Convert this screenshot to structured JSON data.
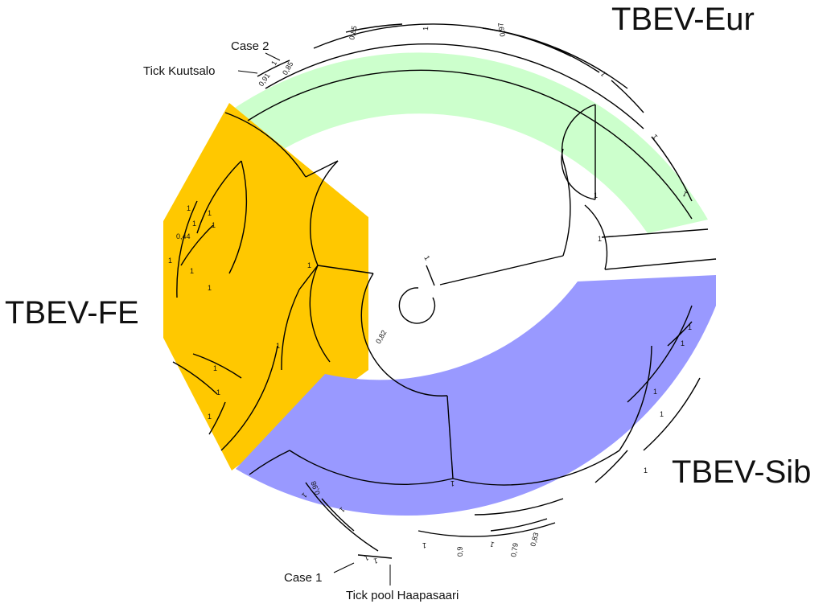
{
  "clades": [
    {
      "name": "TBEV-Eur",
      "color": "#ccffcc"
    },
    {
      "name": "TBEV-FE",
      "color": "#ffc800"
    },
    {
      "name": "TBEV-Sib",
      "color": "#9999ff"
    }
  ],
  "annotations": {
    "case2": "Case 2",
    "tick_kuutsalo": "Tick Kuutsalo",
    "case1": "Case 1",
    "tick_pool": "Tick pool Haapasaari"
  },
  "support_values": [
    "1",
    "0,82",
    "1",
    "1",
    "1",
    "1",
    "1",
    "1",
    "1",
    "0,44",
    "1",
    "1",
    "1",
    "1",
    "1",
    "1",
    "0,85",
    "1",
    "0,97",
    "1",
    "0,85",
    "0,91",
    "1",
    "1",
    "1",
    "1",
    "1",
    "1",
    "1",
    "1",
    "1",
    "1",
    "0,98",
    "1",
    "1",
    "1",
    "0,9",
    "0,79",
    "0,83",
    "1",
    "1",
    "1"
  ]
}
